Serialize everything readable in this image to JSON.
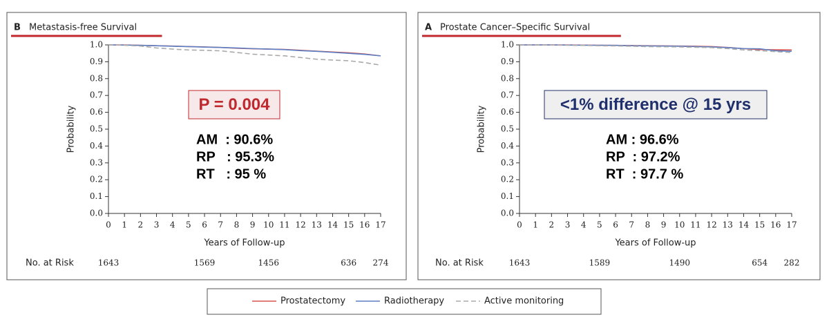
{
  "chart_data": [
    {
      "type": "line",
      "panel": "B",
      "title": "Metastasis-free Survival",
      "x": [
        0,
        1,
        2,
        3,
        4,
        5,
        6,
        7,
        8,
        9,
        10,
        11,
        12,
        13,
        14,
        15,
        16,
        17
      ],
      "series": [
        {
          "name": "Prostatectomy",
          "color": "#d9534f",
          "dash": false,
          "values": [
            1,
            1,
            0.998,
            0.995,
            0.993,
            0.99,
            0.988,
            0.985,
            0.98,
            0.977,
            0.975,
            0.973,
            0.968,
            0.963,
            0.958,
            0.953,
            0.946,
            0.935
          ]
        },
        {
          "name": "Radiotherapy",
          "color": "#5b7fc4",
          "dash": false,
          "values": [
            1,
            0.999,
            0.997,
            0.995,
            0.992,
            0.99,
            0.987,
            0.985,
            0.982,
            0.978,
            0.975,
            0.972,
            0.966,
            0.962,
            0.956,
            0.95,
            0.944,
            0.935
          ]
        },
        {
          "name": "Active monitoring",
          "color": "#aaaaaa",
          "dash": true,
          "values": [
            1,
            0.998,
            0.993,
            0.982,
            0.975,
            0.97,
            0.968,
            0.965,
            0.955,
            0.945,
            0.94,
            0.935,
            0.925,
            0.915,
            0.91,
            0.906,
            0.895,
            0.88
          ]
        }
      ],
      "xlabel": "Years of Follow-up",
      "ylabel": "Probability",
      "xlim": [
        0,
        17
      ],
      "xticks": [
        0,
        1,
        2,
        3,
        4,
        5,
        6,
        7,
        8,
        9,
        10,
        11,
        12,
        13,
        14,
        15,
        16,
        17
      ],
      "ylim": [
        0,
        1
      ],
      "yticks": [
        {
          "value": 0,
          "label": "0.0"
        },
        0.1,
        0.2,
        0.3,
        0.4,
        0.5,
        0.6,
        0.7,
        0.8,
        0.9,
        {
          "value": 1,
          "label": "1.0"
        }
      ],
      "note": "P = 0.004",
      "note_color": "#c0282d",
      "note_fill": "#f7e9e9",
      "stats": [
        "AM  : 90.6%",
        "RP   : 95.3%",
        "RT   : 95 %"
      ],
      "at_risk": {
        "label": "No. at Risk",
        "x": [
          0,
          6,
          10,
          15,
          17
        ],
        "values": [
          1643,
          1569,
          1456,
          636,
          274
        ]
      }
    },
    {
      "type": "line",
      "panel": "A",
      "title": "Prostate Cancer–Specific Survival",
      "x": [
        0,
        1,
        2,
        3,
        4,
        5,
        6,
        7,
        8,
        9,
        10,
        11,
        12,
        13,
        14,
        15,
        16,
        17
      ],
      "series": [
        {
          "name": "Prostatectomy",
          "color": "#d9534f",
          "dash": false,
          "values": [
            1,
            1,
            1,
            1,
            0.999,
            0.998,
            0.997,
            0.996,
            0.995,
            0.994,
            0.993,
            0.992,
            0.99,
            0.985,
            0.978,
            0.972,
            0.971,
            0.97
          ]
        },
        {
          "name": "Radiotherapy",
          "color": "#5b7fc4",
          "dash": false,
          "values": [
            1,
            1,
            1,
            0.999,
            0.998,
            0.998,
            0.997,
            0.995,
            0.994,
            0.993,
            0.992,
            0.99,
            0.988,
            0.984,
            0.978,
            0.977,
            0.965,
            0.962
          ]
        },
        {
          "name": "Active monitoring",
          "color": "#aaaaaa",
          "dash": true,
          "values": [
            1,
            1,
            0.999,
            0.998,
            0.997,
            0.995,
            0.994,
            0.992,
            0.99,
            0.989,
            0.988,
            0.986,
            0.984,
            0.978,
            0.97,
            0.966,
            0.96,
            0.955
          ]
        }
      ],
      "xlabel": "Years of Follow-up",
      "ylabel": "Probability",
      "xlim": [
        0,
        17
      ],
      "xticks": [
        0,
        1,
        2,
        3,
        4,
        5,
        6,
        7,
        8,
        9,
        10,
        11,
        12,
        13,
        14,
        15,
        16,
        17
      ],
      "ylim": [
        0,
        1
      ],
      "yticks": [
        {
          "value": 0,
          "label": "0.0"
        },
        0.1,
        0.2,
        0.3,
        0.4,
        0.5,
        0.6,
        0.7,
        0.8,
        0.9,
        {
          "value": 1,
          "label": "1.0"
        }
      ],
      "note": "<1% difference @ 15 yrs",
      "note_color": "#1f2f6b",
      "note_fill": "#efefef",
      "stats": [
        "AM : 96.6%",
        "RP  : 97.2%",
        "RT  : 97.7 %"
      ],
      "at_risk": {
        "label": "No. at Risk",
        "x": [
          0,
          5,
          10,
          15,
          17
        ],
        "values": [
          1643,
          1589,
          1490,
          654,
          282
        ]
      }
    }
  ]
}
